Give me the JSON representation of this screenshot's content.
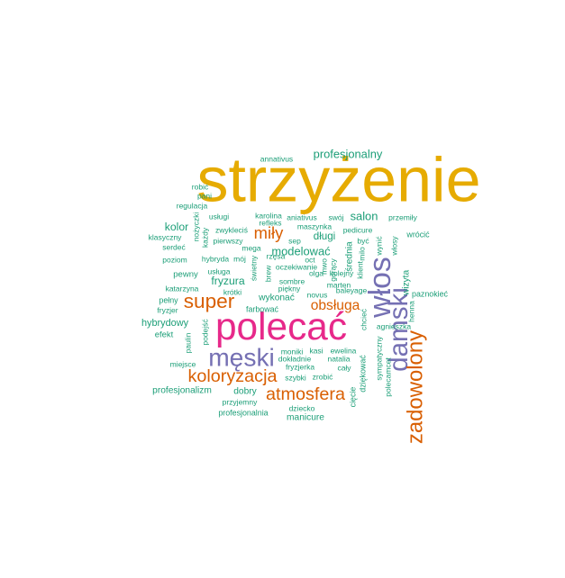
{
  "chart_data": {
    "type": "wordcloud",
    "title": "",
    "colors": {
      "teal": "#1b9e77",
      "orange": "#d95f02",
      "purple": "#7570b3",
      "pink": "#e7298a",
      "gold": "#e6ab02"
    },
    "words": [
      {
        "text": "strzyżenie",
        "weight": 100,
        "color": "gold",
        "rotate": 0
      },
      {
        "text": "polecać",
        "weight": 62,
        "color": "pink",
        "rotate": 0
      },
      {
        "text": "włos",
        "weight": 50,
        "color": "purple",
        "rotate": -90
      },
      {
        "text": "damski",
        "weight": 44,
        "color": "purple",
        "rotate": -90
      },
      {
        "text": "męski",
        "weight": 42,
        "color": "purple",
        "rotate": 0
      },
      {
        "text": "zadowolony",
        "weight": 36,
        "color": "orange",
        "rotate": -90
      },
      {
        "text": "super",
        "weight": 34,
        "color": "orange",
        "rotate": 0
      },
      {
        "text": "atmosfera",
        "weight": 30,
        "color": "orange",
        "rotate": 0
      },
      {
        "text": "koloryzacja",
        "weight": 30,
        "color": "orange",
        "rotate": 0
      },
      {
        "text": "miły",
        "weight": 28,
        "color": "orange",
        "rotate": 0
      },
      {
        "text": "obsługa",
        "weight": 24,
        "color": "orange",
        "rotate": 0
      },
      {
        "text": "profesjonalny",
        "weight": 20,
        "color": "teal",
        "rotate": 0
      },
      {
        "text": "modelować",
        "weight": 20,
        "color": "teal",
        "rotate": 0
      },
      {
        "text": "salon",
        "weight": 20,
        "color": "teal",
        "rotate": 0
      },
      {
        "text": "kolor",
        "weight": 19,
        "color": "teal",
        "rotate": 0
      },
      {
        "text": "fryzura",
        "weight": 19,
        "color": "teal",
        "rotate": 0
      },
      {
        "text": "długi",
        "weight": 18,
        "color": "teal",
        "rotate": 0
      },
      {
        "text": "hybrydowy",
        "weight": 17,
        "color": "teal",
        "rotate": 0
      },
      {
        "text": "profesjonalizm",
        "weight": 16,
        "color": "teal",
        "rotate": 0
      },
      {
        "text": "manicure",
        "weight": 16,
        "color": "teal",
        "rotate": 0
      },
      {
        "text": "dobry",
        "weight": 16,
        "color": "teal",
        "rotate": 0
      },
      {
        "text": "wykonać",
        "weight": 16,
        "color": "teal",
        "rotate": 0
      },
      {
        "text": "średnia",
        "weight": 16,
        "color": "teal",
        "rotate": -90
      },
      {
        "text": "wizyta",
        "weight": 16,
        "color": "teal",
        "rotate": -90
      },
      {
        "text": "pewny",
        "weight": 15,
        "color": "teal",
        "rotate": 0
      },
      {
        "text": "efekt",
        "weight": 15,
        "color": "teal",
        "rotate": 0
      },
      {
        "text": "pełny",
        "weight": 14,
        "color": "teal",
        "rotate": 0
      },
      {
        "text": "farbować",
        "weight": 14,
        "color": "teal",
        "rotate": 0
      },
      {
        "text": "profesjonalnia",
        "weight": 14,
        "color": "teal",
        "rotate": 0
      },
      {
        "text": "wrócić",
        "weight": 14,
        "color": "teal",
        "rotate": 0
      },
      {
        "text": "paznokieć",
        "weight": 14,
        "color": "teal",
        "rotate": 0
      },
      {
        "text": "dziękować",
        "weight": 14,
        "color": "teal",
        "rotate": -90
      },
      {
        "text": "cięcie",
        "weight": 14,
        "color": "teal",
        "rotate": -90
      },
      {
        "text": "natalia",
        "weight": 13,
        "color": "teal",
        "rotate": 0
      },
      {
        "text": "fryzjerka",
        "weight": 13,
        "color": "teal",
        "rotate": 0
      },
      {
        "text": "moniki",
        "weight": 13,
        "color": "teal",
        "rotate": 0
      },
      {
        "text": "być",
        "weight": 13,
        "color": "teal",
        "rotate": 0
      },
      {
        "text": "usługa",
        "weight": 12,
        "color": "teal",
        "rotate": 0
      },
      {
        "text": "krótki",
        "weight": 12,
        "color": "teal",
        "rotate": 0
      },
      {
        "text": "piękny",
        "weight": 12,
        "color": "teal",
        "rotate": 0
      },
      {
        "text": "pierwszy",
        "weight": 12,
        "color": "teal",
        "rotate": 0
      },
      {
        "text": "serdeć",
        "weight": 12,
        "color": "teal",
        "rotate": 0
      },
      {
        "text": "fryzjer",
        "weight": 12,
        "color": "teal",
        "rotate": 0
      },
      {
        "text": "zrobić",
        "weight": 12,
        "color": "teal",
        "rotate": 0
      },
      {
        "text": "brew",
        "weight": 12,
        "color": "teal",
        "rotate": -90
      },
      {
        "text": "świetny",
        "weight": 12,
        "color": "teal",
        "rotate": -90
      },
      {
        "text": "podejść",
        "weight": 12,
        "color": "teal",
        "rotate": -90
      },
      {
        "text": "klient",
        "weight": 12,
        "color": "teal",
        "rotate": -90
      },
      {
        "text": "usługi",
        "weight": 11,
        "color": "teal",
        "rotate": 0
      },
      {
        "text": "karolina",
        "weight": 11,
        "color": "teal",
        "rotate": 0
      },
      {
        "text": "aniativus",
        "weight": 11,
        "color": "teal",
        "rotate": 0
      },
      {
        "text": "przemiły",
        "weight": 11,
        "color": "teal",
        "rotate": 0
      },
      {
        "text": "klasyczny",
        "weight": 11,
        "color": "teal",
        "rotate": 0
      },
      {
        "text": "zwykleciś",
        "weight": 11,
        "color": "teal",
        "rotate": 0
      },
      {
        "text": "maszynka",
        "weight": 11,
        "color": "teal",
        "rotate": 0
      },
      {
        "text": "pedicure",
        "weight": 11,
        "color": "teal",
        "rotate": 0
      },
      {
        "text": "regulacja",
        "weight": 11,
        "color": "teal",
        "rotate": 0
      },
      {
        "text": "katarzyna",
        "weight": 11,
        "color": "teal",
        "rotate": 0
      },
      {
        "text": "miejsce",
        "weight": 11,
        "color": "teal",
        "rotate": 0
      },
      {
        "text": "szybki",
        "weight": 11,
        "color": "teal",
        "rotate": 0
      },
      {
        "text": "sympatyczny",
        "weight": 11,
        "color": "teal",
        "rotate": -90
      },
      {
        "text": "agnieszka",
        "weight": 11,
        "color": "teal",
        "rotate": 0
      },
      {
        "text": "ewelina",
        "weight": 11,
        "color": "teal",
        "rotate": 0
      },
      {
        "text": "kasi",
        "weight": 11,
        "color": "teal",
        "rotate": 0
      },
      {
        "text": "cały",
        "weight": 11,
        "color": "teal",
        "rotate": 0
      },
      {
        "text": "dziecko",
        "weight": 10,
        "color": "teal",
        "rotate": 0
      },
      {
        "text": "przyjemny",
        "weight": 10,
        "color": "teal",
        "rotate": 0
      },
      {
        "text": "dokładnie",
        "weight": 10,
        "color": "teal",
        "rotate": 0
      },
      {
        "text": "novus",
        "weight": 10,
        "color": "teal",
        "rotate": 0
      },
      {
        "text": "baleyage",
        "weight": 10,
        "color": "teal",
        "rotate": 0
      },
      {
        "text": "oct",
        "weight": 10,
        "color": "teal",
        "rotate": 0
      },
      {
        "text": "marten",
        "weight": 10,
        "color": "teal",
        "rotate": 0
      },
      {
        "text": "kolejny",
        "weight": 10,
        "color": "teal",
        "rotate": 0
      },
      {
        "text": "oczekiwanie",
        "weight": 10,
        "color": "teal",
        "rotate": 0
      },
      {
        "text": "olga",
        "weight": 10,
        "color": "teal",
        "rotate": 0
      },
      {
        "text": "sombre",
        "weight": 10,
        "color": "teal",
        "rotate": 0
      },
      {
        "text": "rzęsa",
        "weight": 10,
        "color": "teal",
        "rotate": 0
      },
      {
        "text": "sep",
        "weight": 10,
        "color": "teal",
        "rotate": 0
      },
      {
        "text": "mega",
        "weight": 10,
        "color": "teal",
        "rotate": 0
      },
      {
        "text": "hybryda",
        "weight": 10,
        "color": "teal",
        "rotate": 0
      },
      {
        "text": "mój",
        "weight": 10,
        "color": "teal",
        "rotate": 0
      },
      {
        "text": "poziom",
        "weight": 10,
        "color": "teal",
        "rotate": 0
      },
      {
        "text": "refleks",
        "weight": 10,
        "color": "teal",
        "rotate": 0
      },
      {
        "text": "swój",
        "weight": 10,
        "color": "teal",
        "rotate": 0
      },
      {
        "text": "annativus",
        "weight": 10,
        "color": "teal",
        "rotate": 0
      },
      {
        "text": "robić",
        "weight": 10,
        "color": "teal",
        "rotate": 0
      },
      {
        "text": "pani",
        "weight": 10,
        "color": "teal",
        "rotate": 0
      },
      {
        "text": "nożyczki",
        "weight": 10,
        "color": "teal",
        "rotate": -90
      },
      {
        "text": "każdy",
        "weight": 10,
        "color": "teal",
        "rotate": -90
      },
      {
        "text": "paulin",
        "weight": 10,
        "color": "teal",
        "rotate": -90
      },
      {
        "text": "wynić",
        "weight": 10,
        "color": "teal",
        "rotate": -90
      },
      {
        "text": "włosy",
        "weight": 10,
        "color": "teal",
        "rotate": -90
      },
      {
        "text": "henna",
        "weight": 10,
        "color": "teal",
        "rotate": -90
      },
      {
        "text": "milo",
        "weight": 10,
        "color": "teal",
        "rotate": -90
      },
      {
        "text": "chcieć",
        "weight": 10,
        "color": "teal",
        "rotate": -90
      },
      {
        "text": "polecamcet",
        "weight": 10,
        "color": "teal",
        "rotate": -90
      },
      {
        "text": "gorący",
        "weight": 10,
        "color": "teal",
        "rotate": -90
      },
      {
        "text": "mwo",
        "weight": 10,
        "color": "teal",
        "rotate": -90
      }
    ]
  }
}
